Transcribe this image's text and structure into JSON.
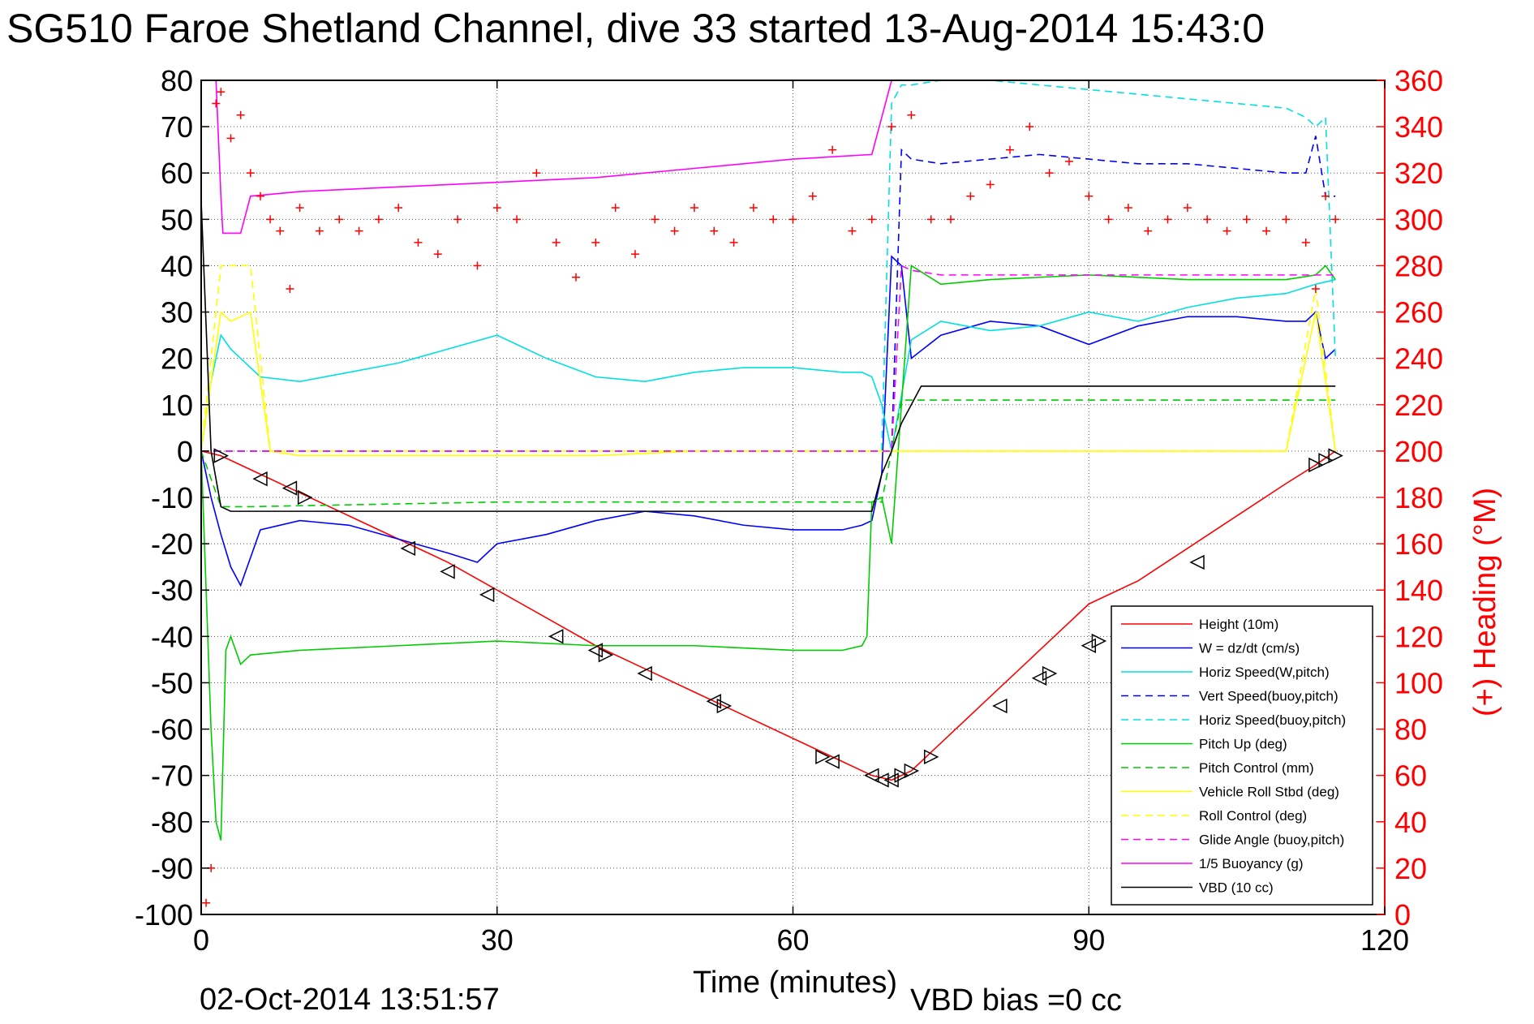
{
  "chart_data": {
    "type": "line",
    "title": "SG510 Faroe Shetland Channel, dive 33 started 13-Aug-2014 15:43:0",
    "xlabel": "Time (minutes)",
    "ylabel_right": "(+) Heading (°M)",
    "footer_date": "02-Oct-2014 13:51:57",
    "footer_note": "VBD bias =0 cc",
    "xlim": [
      0,
      120
    ],
    "ylim_left": [
      -100,
      80
    ],
    "ylim_right": [
      0,
      360
    ],
    "x_ticks": [
      "0",
      "30",
      "60",
      "90",
      "120"
    ],
    "y_ticks_left": [
      "80",
      "70",
      "60",
      "50",
      "40",
      "30",
      "20",
      "10",
      "0",
      "-10",
      "-20",
      "-30",
      "-40",
      "-50",
      "-60",
      "-70",
      "-80",
      "-90",
      "-100"
    ],
    "y_ticks_right": [
      "360",
      "340",
      "320",
      "300",
      "280",
      "260",
      "240",
      "220",
      "200",
      "180",
      "160",
      "140",
      "120",
      "100",
      "80",
      "60",
      "40",
      "20",
      "0"
    ],
    "grid": true,
    "legend_position": "bottom-right",
    "series": [
      {
        "name": "Height (10m)",
        "color": "#ff0000",
        "style": "solid",
        "x": [
          0,
          2,
          5,
          10,
          15,
          20,
          25,
          30,
          35,
          40,
          45,
          50,
          55,
          60,
          65,
          68,
          70,
          72,
          75,
          80,
          85,
          90,
          95,
          100,
          105,
          110,
          113,
          115
        ],
        "y": [
          0,
          -1,
          -4,
          -9,
          -14,
          -19,
          -24,
          -30,
          -36,
          -42,
          -47,
          -52,
          -57,
          -62,
          -67,
          -70,
          -71,
          -69,
          -63,
          -53,
          -43,
          -33,
          -28,
          -21,
          -14,
          -7,
          -3,
          0
        ]
      },
      {
        "name": "W = dz/dt (cm/s)",
        "color": "#0000ff",
        "style": "solid",
        "x": [
          0,
          1,
          2,
          3,
          4,
          6,
          10,
          15,
          20,
          25,
          28,
          30,
          35,
          40,
          45,
          50,
          55,
          60,
          65,
          67,
          68,
          69,
          70,
          71,
          72,
          75,
          80,
          85,
          90,
          95,
          100,
          105,
          110,
          112,
          113,
          114,
          115
        ],
        "y": [
          0,
          -10,
          -18,
          -25,
          -29,
          -17,
          -15,
          -16,
          -19,
          -22,
          -24,
          -20,
          -18,
          -15,
          -13,
          -14,
          -16,
          -17,
          -17,
          -16,
          -15,
          -5,
          42,
          40,
          20,
          25,
          28,
          27,
          23,
          27,
          29,
          29,
          28,
          28,
          30,
          20,
          22
        ]
      },
      {
        "name": "Horiz Speed(W,pitch)",
        "color": "#00e0e0",
        "style": "solid",
        "x": [
          0,
          1,
          2,
          3,
          4,
          6,
          10,
          15,
          20,
          25,
          30,
          35,
          40,
          45,
          50,
          55,
          60,
          65,
          67,
          68,
          69,
          70,
          71,
          72,
          75,
          80,
          85,
          90,
          95,
          100,
          105,
          110,
          113,
          115
        ],
        "y": [
          0,
          15,
          25,
          22,
          20,
          16,
          15,
          17,
          19,
          22,
          25,
          20,
          16,
          15,
          17,
          18,
          18,
          17,
          17,
          16,
          10,
          0,
          12,
          24,
          28,
          26,
          27,
          30,
          28,
          31,
          33,
          34,
          36,
          37
        ]
      },
      {
        "name": "Vert Speed(buoy,pitch)",
        "color": "#0000ff",
        "style": "dashed",
        "x": [
          0,
          68,
          69,
          70,
          71,
          72,
          75,
          80,
          85,
          90,
          95,
          100,
          105,
          110,
          112,
          113,
          114,
          115
        ],
        "y": [
          0,
          0,
          0,
          0,
          65,
          63,
          62,
          63,
          64,
          63,
          62,
          62,
          61,
          60,
          60,
          68,
          55,
          55
        ]
      },
      {
        "name": "Horiz Speed(buoy,pitch)",
        "color": "#00e0e0",
        "style": "dashed",
        "x": [
          0,
          68,
          69,
          70,
          71,
          72,
          75,
          80,
          85,
          90,
          95,
          100,
          105,
          110,
          112,
          113,
          114,
          115
        ],
        "y": [
          0,
          0,
          0,
          75,
          79,
          79,
          80,
          80,
          79,
          78,
          77,
          76,
          75,
          74,
          72,
          70,
          72,
          20
        ]
      },
      {
        "name": "Pitch Up (deg)",
        "color": "#00cc00",
        "style": "solid",
        "x": [
          0,
          1,
          1.5,
          2,
          2.5,
          3,
          4,
          5,
          10,
          20,
          30,
          40,
          50,
          60,
          65,
          67,
          67.5,
          68,
          69,
          70,
          72,
          75,
          80,
          90,
          100,
          110,
          113,
          114,
          115
        ],
        "y": [
          0,
          -60,
          -80,
          -84,
          -43,
          -40,
          -46,
          -44,
          -43,
          -42,
          -41,
          -42,
          -42,
          -43,
          -43,
          -42,
          -40,
          -11,
          -10,
          -20,
          40,
          36,
          37,
          38,
          37,
          37,
          38,
          40,
          37
        ]
      },
      {
        "name": "Pitch Control (mm)",
        "color": "#00cc00",
        "style": "dashed",
        "x": [
          0,
          2,
          5,
          30,
          60,
          68,
          69,
          70,
          71,
          72,
          73,
          80,
          90,
          100,
          110,
          115
        ],
        "y": [
          0,
          -12,
          -12,
          -11,
          -11,
          -11,
          -11,
          0,
          11,
          11,
          11,
          11,
          11,
          11,
          11,
          11
        ]
      },
      {
        "name": "Vehicle Roll Stbd (deg)",
        "color": "#ffff00",
        "style": "solid",
        "x": [
          0,
          2,
          3,
          5,
          7,
          10,
          20,
          30,
          40,
          50,
          60,
          68,
          70,
          80,
          90,
          100,
          110,
          113,
          115
        ],
        "y": [
          0,
          30,
          28,
          30,
          0,
          -1,
          -1,
          -1,
          -1,
          0,
          0,
          0,
          0,
          0,
          0,
          0,
          0,
          30,
          0
        ]
      },
      {
        "name": "Roll Control (deg)",
        "color": "#ffff00",
        "style": "dashed",
        "x": [
          0,
          2,
          3,
          5,
          7,
          10,
          20,
          30,
          40,
          50,
          60,
          68,
          70,
          80,
          90,
          100,
          110,
          113,
          115
        ],
        "y": [
          0,
          40,
          40,
          40,
          0,
          0,
          0,
          0,
          0,
          0,
          0,
          0,
          0,
          0,
          0,
          0,
          0,
          35,
          0
        ]
      },
      {
        "name": "Glide Angle (buoy,pitch)",
        "color": "#ff00ff",
        "style": "dashed",
        "x": [
          0,
          68,
          69,
          70,
          71,
          72,
          75,
          80,
          90,
          100,
          110,
          115
        ],
        "y": [
          0,
          0,
          0,
          0,
          40,
          39,
          38,
          38,
          38,
          38,
          38,
          38
        ]
      },
      {
        "name": "1/5 Buoyancy (g)",
        "color": "#ff00ff",
        "style": "solid",
        "x": [
          1.5,
          2,
          2.2,
          4,
          5,
          10,
          20,
          30,
          40,
          50,
          60,
          68,
          69,
          70
        ],
        "y": [
          80,
          55,
          47,
          47,
          55,
          56,
          57,
          58,
          59,
          61,
          63,
          64,
          72,
          80
        ]
      },
      {
        "name": "VBD (10 cc)",
        "color": "#000000",
        "style": "solid",
        "x": [
          0,
          1,
          2,
          3,
          10,
          20,
          30,
          40,
          50,
          60,
          68,
          69,
          70,
          71,
          72,
          73,
          80,
          90,
          100,
          110,
          115
        ],
        "y": [
          54,
          0,
          -12,
          -13,
          -13,
          -13,
          -13,
          -13,
          -13,
          -13,
          -13,
          -5,
          0,
          6,
          10,
          14,
          14,
          14,
          14,
          14,
          14
        ]
      }
    ],
    "heading": {
      "name": "(+) Heading (°M)",
      "color": "#ff0000",
      "marker": "+",
      "x": [
        0.5,
        1,
        1.5,
        2,
        3,
        4,
        5,
        6,
        7,
        8,
        9,
        10,
        12,
        14,
        16,
        18,
        20,
        22,
        24,
        26,
        28,
        30,
        32,
        34,
        36,
        38,
        40,
        42,
        44,
        46,
        48,
        50,
        52,
        54,
        56,
        58,
        60,
        62,
        64,
        66,
        68,
        70,
        72,
        74,
        76,
        78,
        80,
        82,
        84,
        86,
        88,
        90,
        92,
        94,
        96,
        98,
        100,
        102,
        104,
        106,
        108,
        110,
        112,
        113,
        114,
        115
      ],
      "y": [
        5,
        20,
        350,
        355,
        335,
        345,
        320,
        310,
        300,
        295,
        270,
        305,
        295,
        300,
        295,
        300,
        305,
        290,
        285,
        300,
        280,
        305,
        300,
        320,
        290,
        275,
        290,
        305,
        285,
        300,
        295,
        305,
        295,
        290,
        305,
        300,
        300,
        310,
        330,
        295,
        300,
        340,
        345,
        300,
        300,
        310,
        315,
        330,
        340,
        320,
        325,
        310,
        300,
        305,
        295,
        300,
        305,
        300,
        295,
        300,
        295,
        300,
        290,
        270,
        310,
        300
      ]
    },
    "glider_markers": {
      "name": "pitch markers",
      "x": [
        2,
        6,
        9,
        10.5,
        21,
        25,
        29,
        36,
        40,
        41,
        45,
        52,
        53,
        63,
        64,
        68,
        69,
        70,
        71,
        72,
        74,
        81,
        85,
        86,
        90,
        91,
        101,
        113,
        114,
        115
      ],
      "y": [
        -1,
        -6,
        -8,
        -10,
        -21,
        -26,
        -31,
        -40,
        -43,
        -44,
        -48,
        -54,
        -55,
        -66,
        -67,
        -70,
        -71,
        -71,
        -70,
        -69,
        -66,
        -55,
        -49,
        -48,
        -42,
        -41,
        -24,
        -3,
        -2,
        -1
      ],
      "dir": [
        "r",
        "l",
        "l",
        "r",
        "l",
        "l",
        "l",
        "l",
        "l",
        "r",
        "l",
        "l",
        "r",
        "r",
        "l",
        "l",
        "l",
        "l",
        "r",
        "r",
        "r",
        "l",
        "l",
        "r",
        "l",
        "r",
        "l",
        "r",
        "r",
        "r"
      ]
    }
  }
}
